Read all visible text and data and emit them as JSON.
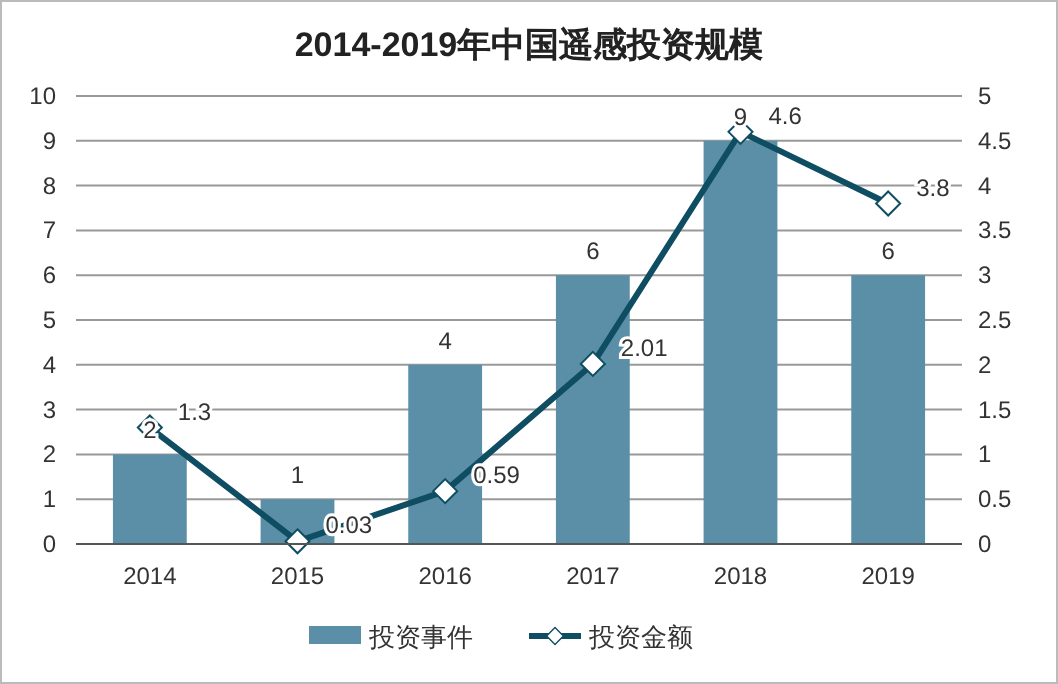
{
  "chart_data": {
    "type": "bar",
    "title": "2014-2019年中国遥感投资规模",
    "categories": [
      "2014",
      "2015",
      "2016",
      "2017",
      "2018",
      "2019"
    ],
    "series": [
      {
        "name": "投资事件",
        "color": "#5b8fa8",
        "values": [
          2,
          1,
          4,
          6,
          9,
          6
        ]
      },
      {
        "name": "投资金额",
        "type": "line",
        "axis": "y2",
        "color": "#0f4d63",
        "marker": "diamond",
        "values": [
          1.3,
          0.03,
          0.59,
          2.01,
          4.6,
          3.8
        ]
      }
    ],
    "ylim": [
      0,
      10
    ],
    "yticks": [
      0,
      1,
      2,
      3,
      4,
      5,
      6,
      7,
      8,
      9,
      10
    ],
    "y2lim": [
      0,
      5
    ],
    "y2ticks": [
      0,
      0.5,
      1,
      1.5,
      2,
      2.5,
      3,
      3.5,
      4,
      4.5,
      5
    ],
    "grid": "y",
    "legend": "bottom",
    "data_labels": true
  }
}
